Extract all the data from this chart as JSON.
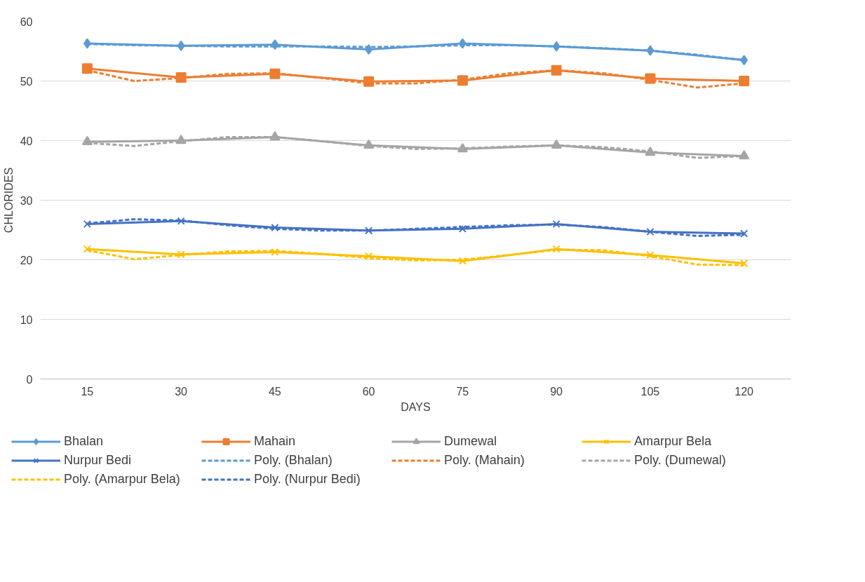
{
  "chart_data": {
    "type": "line",
    "xlabel": "DAYS",
    "ylabel": "CHLORIDES",
    "x": [
      15,
      30,
      45,
      60,
      75,
      90,
      105,
      120
    ],
    "xlim": [
      7.5,
      127.5
    ],
    "xticks": [
      15,
      30,
      45,
      60,
      75,
      90,
      105,
      120
    ],
    "ylim": [
      0,
      60
    ],
    "yticks": [
      0,
      10,
      20,
      30,
      40,
      50,
      60
    ],
    "grid": "y",
    "legend": "bottom",
    "series": [
      {
        "name": "Bhalan",
        "color": "#5b9bd5",
        "marker": "diamond",
        "line_style": "solid",
        "values": [
          56.3,
          55.9,
          56.1,
          55.3,
          56.3,
          55.8,
          55.1,
          53.5
        ]
      },
      {
        "name": "Mahain",
        "color": "#ed7d31",
        "marker": "square",
        "line_style": "solid",
        "values": [
          52.1,
          50.6,
          51.2,
          49.9,
          50.1,
          51.8,
          50.4,
          50.0
        ]
      },
      {
        "name": "Dumewal",
        "color": "#a5a5a5",
        "marker": "triangle",
        "line_style": "solid",
        "values": [
          39.8,
          40.0,
          40.6,
          39.2,
          38.6,
          39.2,
          38.0,
          37.4
        ]
      },
      {
        "name": "Amarpur Bela",
        "color": "#ffc000",
        "marker": "cross",
        "line_style": "solid",
        "values": [
          21.8,
          20.9,
          21.3,
          20.6,
          19.8,
          21.8,
          20.8,
          19.4
        ]
      },
      {
        "name": "Nurpur Bedi",
        "color": "#4472c4",
        "marker": "cross",
        "line_style": "solid",
        "values": [
          26.0,
          26.5,
          25.4,
          24.9,
          25.2,
          26.0,
          24.7,
          24.4
        ]
      },
      {
        "name": "Poly. (Bhalan)",
        "color": "#5b9bd5",
        "marker": "none",
        "line_style": "dashed",
        "x": [
          15,
          22.5,
          30,
          37.5,
          45,
          52.5,
          60,
          67.5,
          75,
          82.5,
          90,
          97.5,
          105,
          112.5,
          120
        ],
        "values": [
          56.2,
          56.0,
          55.9,
          55.8,
          55.8,
          55.8,
          55.7,
          55.8,
          56.0,
          56.0,
          55.8,
          55.5,
          55.1,
          54.4,
          53.5
        ]
      },
      {
        "name": "Poly. (Mahain)",
        "color": "#ed7d31",
        "marker": "none",
        "line_style": "dashed",
        "x": [
          15,
          22.5,
          30,
          37.5,
          45,
          52.5,
          60,
          67.5,
          75,
          82.5,
          90,
          97.5,
          105,
          112.5,
          120
        ],
        "values": [
          51.8,
          50.0,
          50.5,
          51.2,
          51.3,
          50.5,
          49.6,
          49.6,
          50.2,
          51.3,
          51.8,
          51.3,
          50.2,
          48.9,
          49.6
        ]
      },
      {
        "name": "Poly. (Dumewal)",
        "color": "#a5a5a5",
        "marker": "none",
        "line_style": "dashed",
        "x": [
          15,
          22.5,
          30,
          37.5,
          45,
          52.5,
          60,
          67.5,
          75,
          82.5,
          90,
          97.5,
          105,
          112.5,
          120
        ],
        "values": [
          39.6,
          39.1,
          39.9,
          40.6,
          40.6,
          39.9,
          39.1,
          38.6,
          38.7,
          39.0,
          39.2,
          38.9,
          38.2,
          37.1,
          37.4
        ]
      },
      {
        "name": "Poly. (Amarpur Bela)",
        "color": "#ffc000",
        "marker": "none",
        "line_style": "dashed",
        "x": [
          15,
          22.5,
          30,
          37.5,
          45,
          52.5,
          60,
          67.5,
          75,
          82.5,
          90,
          97.5,
          105,
          112.5,
          120
        ],
        "values": [
          21.6,
          20.1,
          20.8,
          21.4,
          21.5,
          21.0,
          20.3,
          19.9,
          20.0,
          20.8,
          21.7,
          21.6,
          20.6,
          19.2,
          19.1
        ]
      },
      {
        "name": "Poly. (Nurpur Bedi)",
        "color": "#4472c4",
        "marker": "none",
        "line_style": "dashed",
        "x": [
          15,
          22.5,
          30,
          37.5,
          45,
          52.5,
          60,
          67.5,
          75,
          82.5,
          90,
          97.5,
          105,
          112.5,
          120
        ],
        "values": [
          26.1,
          26.8,
          26.6,
          25.8,
          25.2,
          24.9,
          24.9,
          25.2,
          25.5,
          25.8,
          25.9,
          25.5,
          24.7,
          24.0,
          24.2
        ]
      }
    ]
  }
}
